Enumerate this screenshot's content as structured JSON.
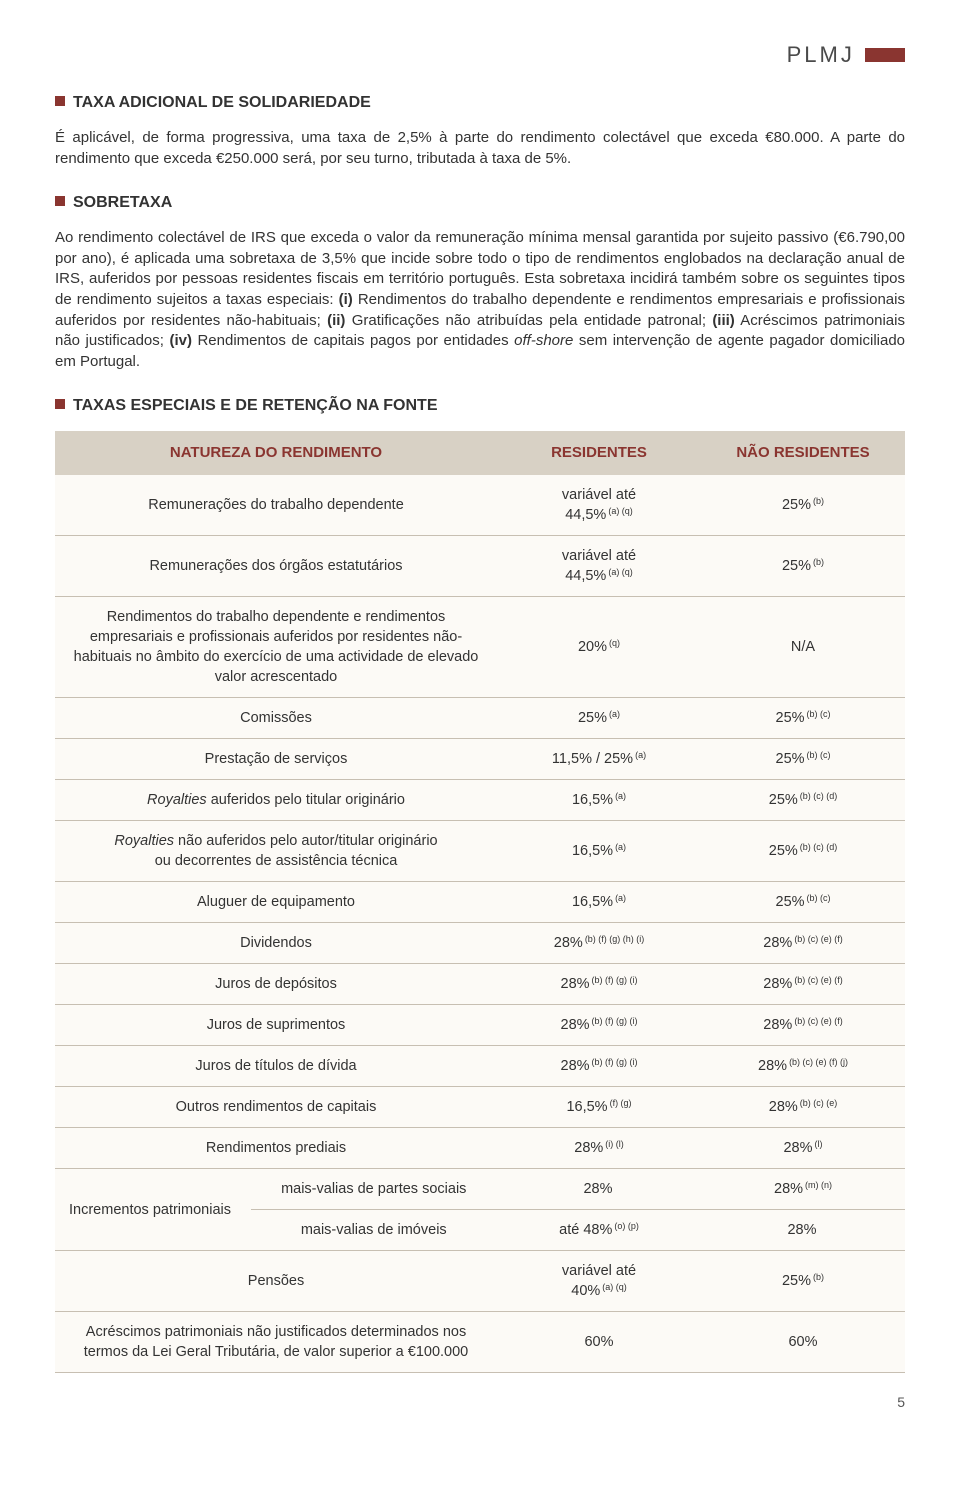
{
  "logo": {
    "text": "PLMJ"
  },
  "sections": {
    "s1": {
      "title": "TAXA ADICIONAL DE SOLIDARIEDADE",
      "p": "É aplicável, de forma progressiva, uma taxa de 2,5% à parte do rendimento colectável que exceda €80.000. A parte do rendimento que exceda €250.000 será, por seu turno, tributada à taxa de 5%."
    },
    "s2": {
      "title": "SOBRETAXA",
      "p1a": "Ao rendimento colectável de IRS que exceda o valor da remuneração mínima mensal garantida por sujeito passivo (€6.790,00 por ano), é aplicada uma sobretaxa de 3,5% que incide sobre todo o tipo de rendimentos englobados na declaração anual de IRS, auferidos por pessoas residentes fiscais em território português. Esta sobretaxa incidirá também sobre os seguintes tipos de rendimento sujeitos a taxas especiais: ",
      "i": "(i)",
      "i_t": " Rendimentos do trabalho dependente e rendimentos empresariais e profissionais auferidos por residentes não-habituais; ",
      "ii": "(ii)",
      "ii_t": " Gratificações não atribuídas pela entidade patronal; ",
      "iii": "(iii)",
      "iii_t": " Acréscimos patrimoniais não justificados; ",
      "iv": "(iv)",
      "iv_t": " Rendimentos de capitais pagos por entidades ",
      "offshore": "off-shore",
      "iv_end": " sem intervenção de agente pagador domiciliado em Portugal."
    },
    "s3": {
      "title": "TAXAS ESPECIAIS E DE RETENÇÃO NA FONTE"
    }
  },
  "table": {
    "headers": {
      "nature": "NATUREZA DO RENDIMENTO",
      "res": "RESIDENTES",
      "nonres": "NÃO RESIDENTES"
    },
    "rows": [
      {
        "label": "Remunerações do trabalho dependente",
        "res_l1": "variável até",
        "res_l2": "44,5%",
        "res_sup": "(a) (q)",
        "non": "25%",
        "non_sup": "(b)"
      },
      {
        "label": "Remunerações dos órgãos estatutários",
        "res_l1": "variável até",
        "res_l2": "44,5%",
        "res_sup": "(a) (q)",
        "non": "25%",
        "non_sup": "(b)"
      },
      {
        "label": "Rendimentos do trabalho dependente e rendimentos empresariais e profissionais auferidos por residentes não-habituais no âmbito do exercício de uma actividade de elevado valor acrescentado",
        "res": "20%",
        "res_sup": "(q)",
        "non": "N/A",
        "non_sup": ""
      },
      {
        "label": "Comissões",
        "res": "25%",
        "res_sup": "(a)",
        "non": "25%",
        "non_sup": "(b) (c)"
      },
      {
        "label": "Prestação de serviços",
        "res": "11,5% / 25%",
        "res_sup": "(a)",
        "non": "25%",
        "non_sup": "(b) (c)"
      },
      {
        "label_html": "<em>Royalties</em> auferidos pelo titular originário",
        "res": "16,5%",
        "res_sup": "(a)",
        "non": "25%",
        "non_sup": "(b) (c) (d)"
      },
      {
        "label_html": "<em>Royalties</em> não auferidos pelo autor/titular originário<br>ou decorrentes de assistência técnica",
        "res": "16,5%",
        "res_sup": "(a)",
        "non": "25%",
        "non_sup": "(b) (c) (d)"
      },
      {
        "label": "Aluguer de equipamento",
        "res": "16,5%",
        "res_sup": "(a)",
        "non": "25%",
        "non_sup": "(b) (c)"
      },
      {
        "label": "Dividendos",
        "res": "28%",
        "res_sup": "(b) (f) (g) (h) (i)",
        "non": "28%",
        "non_sup": "(b) (c) (e) (f)"
      },
      {
        "label": "Juros de depósitos",
        "res": "28%",
        "res_sup": "(b) (f) (g) (i)",
        "non": "28%",
        "non_sup": "(b) (c) (e) (f)"
      },
      {
        "label": "Juros de suprimentos",
        "res": "28%",
        "res_sup": "(b) (f) (g) (i)",
        "non": "28%",
        "non_sup": "(b) (c) (e) (f)"
      },
      {
        "label": "Juros de títulos de dívida",
        "res": "28%",
        "res_sup": "(b) (f) (g) (i)",
        "non": "28%",
        "non_sup": "(b) (c) (e) (f) (j)"
      },
      {
        "label": "Outros rendimentos de capitais",
        "res": "16,5%",
        "res_sup": "(f) (g)",
        "non": "28%",
        "non_sup": "(b) (c) (e)"
      },
      {
        "label": "Rendimentos prediais",
        "res": "28%",
        "res_sup": "(i) (l)",
        "non": "28%",
        "non_sup": "(l)"
      }
    ],
    "increments": {
      "group": "Incrementos patrimoniais",
      "r1": {
        "label": "mais-valias de partes sociais",
        "res": "28%",
        "res_sup": "",
        "non": "28%",
        "non_sup": "(m) (n)"
      },
      "r2": {
        "label": "mais-valias de imóveis",
        "res": "até 48%",
        "res_sup": "(o) (p)",
        "non": "28%",
        "non_sup": ""
      }
    },
    "pensions": {
      "label": "Pensões",
      "res_l1": "variável até",
      "res_l2": "40%",
      "res_sup": "(a) (q)",
      "non": "25%",
      "non_sup": "(b)"
    },
    "last": {
      "label": "Acréscimos patrimoniais não justificados determinados nos termos da Lei Geral Tributária, de valor superior a  €100.000",
      "res": "60%",
      "non": "60%"
    }
  },
  "page": "5"
}
